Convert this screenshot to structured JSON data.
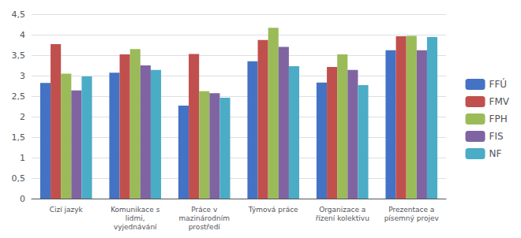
{
  "chart_data": {
    "type": "bar",
    "categories": [
      "Cizí jazyk",
      "Komunikace s\nlidmi,\nvyjednávání",
      "Práce v\nmazinárodním\nprostředí",
      "Týmová práce",
      "Organizace a\nřízení kolektivu",
      "Prezentace a\npísemný projev"
    ],
    "series": [
      {
        "name": "FFÚ",
        "color": "#4472C4",
        "values": [
          2.82,
          3.07,
          2.27,
          3.35,
          2.83,
          3.62
        ]
      },
      {
        "name": "FMV",
        "color": "#C0504D",
        "values": [
          3.77,
          3.52,
          3.53,
          3.87,
          3.21,
          3.96
        ]
      },
      {
        "name": "FPH",
        "color": "#9BBB59",
        "values": [
          3.05,
          3.65,
          2.62,
          4.17,
          3.52,
          3.97
        ]
      },
      {
        "name": "FIS",
        "color": "#8064A2",
        "values": [
          2.64,
          3.25,
          2.57,
          3.7,
          3.14,
          3.62
        ]
      },
      {
        "name": "NF",
        "color": "#4BACC6",
        "values": [
          2.98,
          3.14,
          2.46,
          3.23,
          2.77,
          3.94
        ]
      }
    ],
    "ylim": [
      0,
      4.5
    ],
    "yticks": [
      0,
      {
        "value": 0.5,
        "label": "0,5"
      },
      1,
      {
        "value": 1.5,
        "label": "1,5"
      },
      2,
      {
        "value": 2.5,
        "label": "2,5"
      },
      3,
      {
        "value": 3.5,
        "label": "3,5"
      },
      4,
      {
        "value": 4.5,
        "label": "4,5"
      }
    ],
    "grid": true,
    "legend": "right"
  }
}
